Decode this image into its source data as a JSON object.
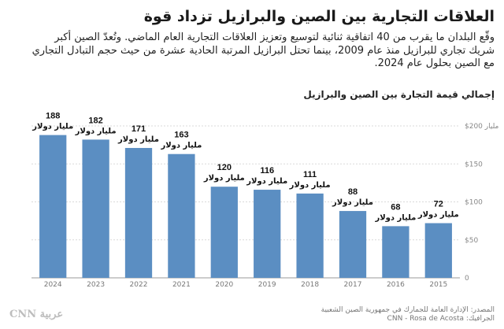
{
  "header": {
    "title": "العلاقات التجارية بين الصين والبرازيل تزداد قوة",
    "subtitle_lines": [
      "وقّع البلدان ما يقرب من 40 اتفاقية ثنائية لتوسيع وتعزيز العلاقات التجارية العام الماضي. وتُعدّ الصين أكبر",
      "شريك تجاري للبرازيل منذ عام 2009، بينما تحتل البرازيل المرتبة الحادية عشرة من حيث حجم التبادل التجاري",
      "مع الصين بحلول عام 2024."
    ]
  },
  "chart_data": {
    "type": "bar",
    "title": "إجمالي قيمة التجارة بين الصين والبرازيل",
    "categories": [
      "2024",
      "2023",
      "2022",
      "2021",
      "2020",
      "2019",
      "2018",
      "2017",
      "2016",
      "2015"
    ],
    "values": [
      188,
      182,
      171,
      163,
      120,
      116,
      111,
      88,
      68,
      72
    ],
    "value_unit_label": "مليار دولار",
    "ylim": [
      0,
      200
    ],
    "yticks": [
      0,
      50,
      100,
      150,
      200
    ],
    "ytick_labels": [
      "0",
      "$50",
      "$100",
      "$150",
      "$200 مليار"
    ],
    "bar_color": "#5b8ec2",
    "grid": true
  },
  "footer": {
    "source": "المصدر: الإدارة العامة للجمارك في جمهورية الصين الشعبية",
    "credit": "الجرافيك: CNN - Rosa de Acosta",
    "logo": "CNN عربية"
  }
}
